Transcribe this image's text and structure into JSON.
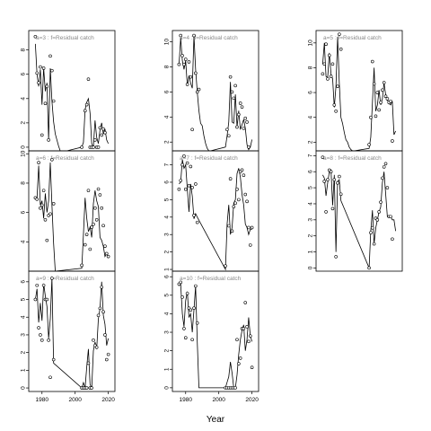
{
  "figure": {
    "xlabel": "Year",
    "x_ticks": [
      1980,
      2000,
      2020
    ],
    "x_range": [
      1972,
      2024
    ]
  },
  "chart_data": [
    {
      "type": "line",
      "panel": "a=3",
      "title": "a=3 : f=Residual catch",
      "ylim": [
        -0.3,
        9.6
      ],
      "y_ticks": [
        0,
        2,
        4,
        6,
        8
      ],
      "line": {
        "x": [
          1976,
          1977,
          1978,
          1979,
          1980,
          1981,
          1982,
          1983,
          1984,
          1985,
          1986,
          1987,
          1988,
          1989,
          1990,
          1991,
          1992,
          1993,
          1994,
          1995,
          2004,
          2005,
          2006,
          2007,
          2008,
          2009,
          2010,
          2011,
          2012,
          2013,
          2014,
          2015,
          2016,
          2017,
          2018,
          2019,
          2020
        ],
        "y": [
          8.5,
          6.0,
          5.0,
          6.4,
          3.5,
          6.5,
          4.6,
          5.3,
          0.6,
          6.5,
          3.8,
          2.1,
          1.1,
          0.6,
          0.1,
          -0.3,
          -0.3,
          -0.3,
          -0.3,
          -0.3,
          0.0,
          0.4,
          3.1,
          3.7,
          4.0,
          2.8,
          0.3,
          0.0,
          2.2,
          0.8,
          0.3,
          1.4,
          2.0,
          1.1,
          1.5,
          0.6,
          0.3
        ]
      },
      "points": {
        "x": [
          1976,
          1977,
          1978,
          1979,
          1980,
          1981,
          1982,
          1983,
          1984,
          1985,
          1986,
          1987,
          2004,
          2006,
          2007,
          2008,
          2009,
          2010,
          2011,
          2012,
          2013,
          2014,
          2015,
          2016,
          2017,
          2018
        ],
        "y": [
          9.1,
          6.1,
          5.3,
          6.6,
          1.0,
          6.5,
          3.6,
          5.0,
          0.6,
          7.5,
          6.3,
          3.8,
          0.0,
          3.0,
          3.5,
          5.6,
          0.0,
          0.0,
          0.0,
          0.6,
          0.0,
          0.0,
          1.6,
          1.0,
          1.5,
          1.2
        ]
      }
    },
    {
      "type": "line",
      "panel": "a=6",
      "title": "a=6 : f=Residual catch",
      "ylim": [
        2.0,
        10.2
      ],
      "y_ticks": [
        4,
        6,
        8,
        10
      ],
      "line": {
        "x": [
          1976,
          1977,
          1978,
          1979,
          1980,
          1981,
          1982,
          1983,
          1984,
          1985,
          1986,
          1987,
          1988,
          2004,
          2005,
          2006,
          2007,
          2008,
          2009,
          2010,
          2011,
          2012,
          2013,
          2014,
          2015,
          2016,
          2017,
          2018,
          2019,
          2020
        ],
        "y": [
          6.9,
          7.0,
          9.2,
          6.5,
          6.8,
          5.6,
          7.3,
          6.0,
          6.8,
          9.4,
          6.5,
          3.9,
          2.0,
          2.2,
          4.5,
          7.0,
          5.6,
          4.7,
          5.0,
          4.3,
          6.6,
          7.5,
          6.8,
          6.4,
          4.3,
          4.1,
          3.7,
          3.0,
          3.2,
          2.9
        ]
      },
      "points": {
        "x": [
          1976,
          1977,
          1978,
          1979,
          1980,
          1981,
          1982,
          1983,
          1984,
          1985,
          1986,
          1987,
          2004,
          2006,
          2007,
          2008,
          2009,
          2010,
          2011,
          2012,
          2013,
          2014,
          2015,
          2016,
          2017,
          2018,
          2019,
          2020
        ],
        "y": [
          7.0,
          6.9,
          9.4,
          6.3,
          6.5,
          7.5,
          5.5,
          4.1,
          5.8,
          5.9,
          9.6,
          6.6,
          2.4,
          3.8,
          4.5,
          7.5,
          3.5,
          5.0,
          5.2,
          6.3,
          5.5,
          7.6,
          7.2,
          6.3,
          5.1,
          3.7,
          3.2,
          3.0
        ]
      }
    },
    {
      "type": "line",
      "panel": "a=9",
      "title": "a=9 : f=Residual catch",
      "ylim": [
        -0.2,
        6.6
      ],
      "y_ticks": [
        0,
        1,
        2,
        3,
        4,
        5,
        6
      ],
      "line": {
        "x": [
          1976,
          1977,
          1978,
          1979,
          1980,
          1981,
          1982,
          1983,
          1984,
          1985,
          1986,
          1987,
          2004,
          2005,
          2006,
          2007,
          2008,
          2009,
          2010,
          2011,
          2012,
          2013,
          2014,
          2015,
          2016,
          2017,
          2018,
          2019,
          2020
        ],
        "y": [
          5.0,
          5.6,
          3.7,
          4.8,
          3.8,
          5.9,
          5.2,
          4.6,
          2.8,
          3.9,
          6.2,
          1.4,
          0.0,
          0.3,
          0.0,
          1.2,
          2.2,
          0.2,
          0.0,
          2.1,
          2.6,
          2.2,
          3.9,
          4.5,
          6.0,
          4.1,
          3.6,
          2.4,
          2.8
        ]
      },
      "points": {
        "x": [
          1976,
          1977,
          1978,
          1979,
          1980,
          1981,
          1982,
          1983,
          1984,
          1985,
          1986,
          1987,
          2004,
          2005,
          2006,
          2007,
          2008,
          2009,
          2010,
          2011,
          2012,
          2013,
          2014,
          2015,
          2016,
          2017,
          2018,
          2019,
          2020
        ],
        "y": [
          5.0,
          5.8,
          3.4,
          3.0,
          2.7,
          5.8,
          5.0,
          5.0,
          2.7,
          0.6,
          6.2,
          1.6,
          0.0,
          0.0,
          0.0,
          0.0,
          1.4,
          0.0,
          0.0,
          2.7,
          2.4,
          2.3,
          4.1,
          4.5,
          5.7,
          4.3,
          3.0,
          1.6,
          1.9
        ]
      }
    },
    {
      "type": "line",
      "panel": "a=4",
      "title": "a=4 : f=Residual catch",
      "ylim": [
        1.3,
        10.9
      ],
      "y_ticks": [
        2,
        4,
        6,
        8,
        10
      ],
      "line": {
        "x": [
          1976,
          1977,
          1978,
          1979,
          1980,
          1981,
          1982,
          1983,
          1984,
          1985,
          1986,
          1987,
          1988,
          1989,
          1990,
          1991,
          1992,
          1993,
          1994,
          1995,
          2004,
          2005,
          2006,
          2007,
          2008,
          2009,
          2010,
          2011,
          2012,
          2013,
          2014,
          2015,
          2016,
          2017,
          2018,
          2019,
          2020
        ],
        "y": [
          8.2,
          10.3,
          8.5,
          7.8,
          8.5,
          6.5,
          7.3,
          6.7,
          6.3,
          10.5,
          7.8,
          6.0,
          4.5,
          3.5,
          3.3,
          2.5,
          1.9,
          1.5,
          1.3,
          1.3,
          1.6,
          2.5,
          3.6,
          6.8,
          3.6,
          3.5,
          5.8,
          3.2,
          4.5,
          3.0,
          3.4,
          3.8,
          3.1,
          1.8,
          1.4,
          1.6,
          2.2
        ]
      },
      "points": {
        "x": [
          1976,
          1977,
          1978,
          1979,
          1980,
          1981,
          1982,
          1983,
          1984,
          1985,
          1986,
          1987,
          1988,
          2005,
          2006,
          2007,
          2008,
          2009,
          2010,
          2011,
          2012,
          2013,
          2014,
          2015,
          2016,
          2017,
          2018
        ],
        "y": [
          8.2,
          10.5,
          8.9,
          8.2,
          8.6,
          6.6,
          8.4,
          7.2,
          3.0,
          10.5,
          7.5,
          6.0,
          6.2,
          3.0,
          2.5,
          7.2,
          6.0,
          5.5,
          6.5,
          3.2,
          4.2,
          5.1,
          4.8,
          3.1,
          3.9,
          3.6,
          1.6
        ]
      }
    },
    {
      "type": "line",
      "panel": "a=7",
      "title": "a=7 : f=Residual catch",
      "ylim": [
        0.9,
        7.8
      ],
      "y_ticks": [
        1,
        2,
        3,
        4,
        5,
        6,
        7
      ],
      "line": {
        "x": [
          1976,
          1977,
          1978,
          1979,
          1980,
          1981,
          1982,
          1983,
          1984,
          1985,
          1986,
          1987,
          2004,
          2005,
          2006,
          2007,
          2008,
          2009,
          2010,
          2011,
          2012,
          2013,
          2014,
          2015,
          2016,
          2017,
          2018,
          2019,
          2020
        ],
        "y": [
          5.9,
          6.0,
          7.3,
          6.8,
          7.0,
          5.6,
          4.3,
          5.9,
          5.2,
          3.9,
          4.2,
          4.0,
          1.0,
          3.6,
          4.7,
          3.0,
          3.4,
          4.8,
          5.0,
          6.5,
          6.8,
          6.3,
          5.3,
          4.7,
          3.6,
          3.4,
          3.0,
          3.3,
          3.3
        ]
      },
      "points": {
        "x": [
          1976,
          1977,
          1978,
          1979,
          1980,
          1981,
          1982,
          1983,
          1984,
          1985,
          1986,
          1987,
          2004,
          2006,
          2007,
          2008,
          2009,
          2010,
          2011,
          2012,
          2013,
          2014,
          2015,
          2016,
          2017,
          2018,
          2019,
          2020
        ],
        "y": [
          5.6,
          6.1,
          7.0,
          7.5,
          5.6,
          7.1,
          5.8,
          6.9,
          5.7,
          4.1,
          5.9,
          3.7,
          1.2,
          3.5,
          6.2,
          3.2,
          4.6,
          4.8,
          5.6,
          5.0,
          6.6,
          6.7,
          6.4,
          5.3,
          4.9,
          3.4,
          2.4,
          3.4
        ]
      }
    },
    {
      "type": "line",
      "panel": "a=10",
      "title": "a=10 : f=Residual catch",
      "ylim": [
        -0.2,
        6.3
      ],
      "y_ticks": [
        0,
        1,
        2,
        3,
        4,
        5,
        6
      ],
      "line": {
        "x": [
          1976,
          1977,
          1978,
          1979,
          1980,
          1981,
          1982,
          1983,
          1984,
          1985,
          1986,
          1987,
          1988,
          2004,
          2005,
          2006,
          2007,
          2008,
          2009,
          2010,
          2011,
          2012,
          2013,
          2014,
          2015,
          2016,
          2017,
          2018,
          2019,
          2020
        ],
        "y": [
          5.5,
          5.6,
          4.0,
          3.3,
          4.7,
          5.2,
          3.8,
          4.0,
          3.0,
          4.2,
          5.5,
          2.5,
          0.0,
          0.0,
          0.3,
          0.6,
          1.4,
          0.8,
          0.0,
          0.0,
          0.7,
          1.8,
          2.6,
          3.1,
          3.4,
          2.0,
          2.6,
          3.8,
          2.8,
          2.5
        ]
      },
      "points": {
        "x": [
          1976,
          1977,
          1978,
          1979,
          1980,
          1981,
          1982,
          1983,
          1984,
          1985,
          1986,
          1987,
          2004,
          2005,
          2006,
          2007,
          2008,
          2009,
          2010,
          2011,
          2012,
          2013,
          2014,
          2015,
          2016,
          2017,
          2018,
          2019,
          2020
        ],
        "y": [
          5.6,
          5.7,
          4.9,
          3.2,
          2.7,
          5.1,
          4.3,
          4.2,
          2.6,
          4.3,
          5.5,
          3.5,
          0.0,
          0.0,
          0.0,
          0.0,
          0.0,
          0.0,
          0.0,
          2.6,
          1.3,
          1.6,
          3.2,
          3.2,
          4.6,
          3.3,
          2.5,
          2.8,
          1.1
        ]
      }
    },
    {
      "type": "line",
      "panel": "a=5",
      "title": "a=5 : f=Residual catch",
      "ylim": [
        1.3,
        11.0
      ],
      "y_ticks": [
        2,
        4,
        6,
        8,
        10
      ],
      "line": {
        "x": [
          1976,
          1977,
          1978,
          1979,
          1980,
          1981,
          1982,
          1983,
          1984,
          1985,
          1986,
          1987,
          1988,
          1989,
          1990,
          1991,
          1992,
          1993,
          1994,
          1995,
          2004,
          2005,
          2006,
          2007,
          2008,
          2009,
          2010,
          2011,
          2012,
          2013,
          2014,
          2015,
          2016,
          2017,
          2018,
          2019,
          2020
        ],
        "y": [
          8.3,
          10.0,
          7.3,
          7.2,
          9.2,
          7.5,
          7.1,
          4.8,
          6.5,
          10.5,
          6.8,
          4.0,
          3.5,
          2.8,
          2.2,
          2.0,
          1.6,
          1.4,
          1.3,
          1.3,
          1.5,
          2.4,
          5.2,
          8.0,
          4.5,
          5.0,
          6.2,
          5.0,
          5.5,
          6.8,
          5.8,
          5.4,
          5.1,
          5.0,
          5.3,
          2.6,
          2.9
        ]
      },
      "points": {
        "x": [
          1976,
          1977,
          1978,
          1979,
          1980,
          1981,
          1982,
          1983,
          1984,
          1985,
          1986,
          1987,
          2004,
          2005,
          2006,
          2007,
          2008,
          2009,
          2010,
          2011,
          2012,
          2013,
          2014,
          2015,
          2016,
          2017,
          2018
        ],
        "y": [
          7.5,
          8.3,
          9.9,
          7.1,
          9.0,
          7.3,
          8.3,
          5.0,
          4.5,
          6.5,
          10.7,
          9.5,
          1.8,
          4.0,
          8.5,
          6.7,
          4.1,
          6.0,
          4.6,
          5.2,
          6.2,
          6.8,
          5.7,
          5.5,
          5.2,
          5.3,
          2.1
        ]
      }
    },
    {
      "type": "line",
      "panel": "a=8",
      "title": "a=8 : f=Residual catch",
      "ylim": [
        -0.2,
        7.3
      ],
      "y_ticks": [
        0,
        1,
        2,
        3,
        4,
        5,
        6,
        7
      ],
      "line": {
        "x": [
          1976,
          1977,
          1978,
          1979,
          1980,
          1981,
          1982,
          1983,
          1984,
          1985,
          1986,
          1987,
          2004,
          2005,
          2006,
          2007,
          2008,
          2009,
          2010,
          2011,
          2012,
          2013,
          2014,
          2015,
          2016,
          2017,
          2018,
          2019,
          2020
        ],
        "y": [
          5.8,
          5.6,
          4.5,
          5.3,
          6.0,
          6.1,
          3.9,
          5.8,
          1.0,
          5.4,
          5.5,
          4.2,
          0.0,
          2.3,
          3.6,
          1.5,
          2.5,
          3.0,
          3.5,
          3.8,
          5.3,
          6.0,
          4.6,
          3.2,
          3.2,
          3.2,
          3.0,
          3.0,
          2.3
        ]
      },
      "points": {
        "x": [
          1976,
          1977,
          1978,
          1979,
          1980,
          1981,
          1982,
          1983,
          1984,
          1985,
          1986,
          1987,
          2004,
          2005,
          2006,
          2007,
          2008,
          2009,
          2010,
          2011,
          2012,
          2013,
          2014,
          2015,
          2016,
          2017,
          2018
        ],
        "y": [
          6.9,
          5.4,
          3.5,
          5.5,
          6.1,
          6.0,
          3.7,
          5.5,
          0.7,
          5.3,
          5.7,
          4.6,
          0.0,
          2.2,
          2.5,
          1.5,
          3.1,
          3.0,
          3.5,
          4.1,
          5.6,
          6.3,
          6.5,
          5.0,
          3.2,
          3.2,
          1.8
        ]
      }
    }
  ]
}
